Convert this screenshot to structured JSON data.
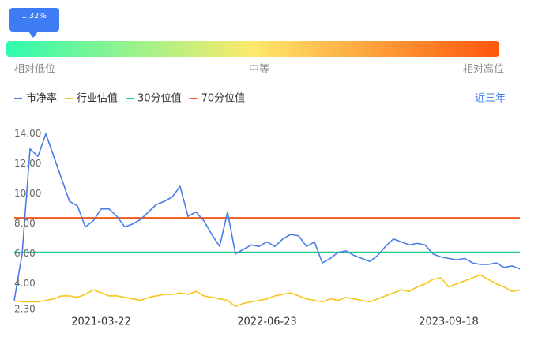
{
  "indicator": {
    "badge": "1.32%",
    "labels": [
      "相对低位",
      "中等",
      "相对高位"
    ]
  },
  "range_button": "近三年",
  "chart_data": {
    "type": "line",
    "categories": [
      null,
      null,
      null,
      null,
      null,
      null,
      null,
      null,
      null,
      null,
      null,
      "2021-03-22",
      null,
      null,
      null,
      null,
      null,
      null,
      null,
      null,
      null,
      null,
      null,
      null,
      null,
      null,
      null,
      null,
      null,
      null,
      null,
      null,
      "2022-06-23",
      null,
      null,
      null,
      null,
      null,
      null,
      null,
      null,
      null,
      null,
      null,
      null,
      null,
      null,
      null,
      null,
      null,
      null,
      null,
      null,
      null,
      null,
      "2023-09-18",
      null,
      null,
      null,
      null,
      null,
      null,
      null,
      null,
      null
    ],
    "series": [
      {
        "name": "市净率",
        "color": "#4a7de8",
        "values": [
          2.9,
          6,
          13,
          12.5,
          14,
          12.5,
          11,
          9.5,
          9.2,
          7.8,
          8.2,
          9,
          9,
          8.5,
          7.8,
          8,
          8.3,
          8.8,
          9.3,
          9.5,
          9.8,
          10.5,
          8.5,
          8.8,
          8.2,
          7.3,
          6.5,
          8.8,
          6,
          6.3,
          6.6,
          6.5,
          6.8,
          6.5,
          7,
          7.3,
          7.2,
          6.5,
          6.8,
          5.4,
          5.7,
          6.1,
          6.2,
          5.9,
          5.7,
          5.5,
          5.9,
          6.5,
          7,
          6.8,
          6.6,
          6.7,
          6.6,
          6,
          5.8,
          5.7,
          5.6,
          5.7,
          5.4,
          5.3,
          5.3,
          5.4,
          5.1,
          5.2,
          5
        ]
      },
      {
        "name": "行业估值",
        "color": "#f5c518",
        "values": [
          2.9,
          2.8,
          2.8,
          2.8,
          2.9,
          3,
          3.2,
          3.2,
          3.1,
          3.3,
          3.6,
          3.4,
          3.2,
          3.2,
          3.1,
          3,
          2.9,
          3.1,
          3.2,
          3.3,
          3.3,
          3.4,
          3.3,
          3.5,
          3.2,
          3.1,
          3,
          2.9,
          2.5,
          2.7,
          2.8,
          2.9,
          3,
          3.2,
          3.3,
          3.4,
          3.2,
          3,
          2.9,
          2.8,
          3,
          2.9,
          3.1,
          3,
          2.9,
          2.8,
          3,
          3.2,
          3.4,
          3.6,
          3.5,
          3.8,
          4,
          4.3,
          4.4,
          3.8,
          4,
          4.2,
          4.4,
          4.6,
          4.3,
          4,
          3.8,
          3.5,
          3.6
        ]
      }
    ],
    "reference_lines": [
      {
        "name": "30分位值",
        "color": "#1fc98a",
        "value": 6.1
      },
      {
        "name": "70分位值",
        "color": "#f05a1a",
        "value": 8.4
      }
    ],
    "ylim": [
      2.3,
      14.3
    ],
    "yticks": [
      {
        "value": 2.3,
        "label": "2.30"
      },
      {
        "value": 4,
        "label": "4.00"
      },
      {
        "value": 6,
        "label": "6.00"
      },
      {
        "value": 8,
        "label": "8.00"
      },
      {
        "value": 10,
        "label": "10.00"
      },
      {
        "value": 12,
        "label": "12.00"
      },
      {
        "value": 14,
        "label": "14.00"
      }
    ]
  }
}
